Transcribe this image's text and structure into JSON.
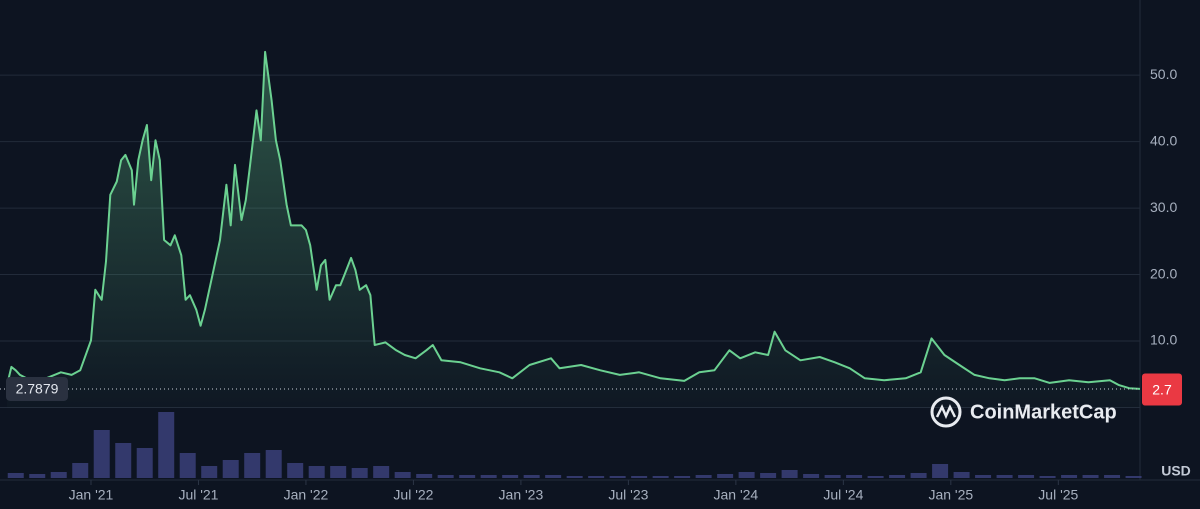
{
  "chart_data": {
    "type": "line",
    "x": [
      2020.61,
      2020.63,
      2020.65,
      2020.67,
      2020.7,
      2020.77,
      2020.86,
      2020.91,
      2020.95,
      2021.0,
      2021.02,
      2021.05,
      2021.07,
      2021.09,
      2021.12,
      2021.14,
      2021.16,
      2021.19,
      2021.2,
      2021.22,
      2021.24,
      2021.26,
      2021.28,
      2021.3,
      2021.32,
      2021.34,
      2021.37,
      2021.39,
      2021.42,
      2021.44,
      2021.46,
      2021.49,
      2021.51,
      2021.53,
      2021.56,
      2021.58,
      2021.6,
      2021.63,
      2021.65,
      2021.67,
      2021.7,
      2021.72,
      2021.74,
      2021.77,
      2021.79,
      2021.81,
      2021.84,
      2021.86,
      2021.88,
      2021.91,
      2021.93,
      2021.98,
      2022.0,
      2022.02,
      2022.05,
      2022.07,
      2022.09,
      2022.11,
      2022.14,
      2022.16,
      2022.18,
      2022.21,
      2022.23,
      2022.25,
      2022.28,
      2022.3,
      2022.32,
      2022.37,
      2022.42,
      2022.46,
      2022.51,
      2022.56,
      2022.59,
      2022.63,
      2022.72,
      2022.81,
      2022.9,
      2022.96,
      2023.04,
      2023.14,
      2023.18,
      2023.28,
      2023.37,
      2023.46,
      2023.55,
      2023.65,
      2023.76,
      2023.83,
      2023.9,
      2023.97,
      2024.02,
      2024.09,
      2024.15,
      2024.18,
      2024.23,
      2024.3,
      2024.39,
      2024.46,
      2024.53,
      2024.6,
      2024.69,
      2024.79,
      2024.86,
      2024.91,
      2024.97,
      2025.04,
      2025.11,
      2025.18,
      2025.25,
      2025.32,
      2025.39,
      2025.46,
      2025.55,
      2025.64,
      2025.74,
      2025.78,
      2025.83,
      2025.88
    ],
    "series": [
      {
        "color": "#6bd191",
        "values": [
          3.4,
          6.1,
          5.6,
          4.9,
          4.4,
          4.1,
          5.3,
          4.9,
          5.6,
          10.1,
          17.7,
          16.2,
          22.0,
          32.0,
          34.0,
          37.2,
          38.0,
          35.7,
          30.5,
          37.2,
          40.2,
          42.5,
          34.2,
          40.2,
          37.2,
          25.2,
          24.4,
          25.9,
          22.9,
          16.2,
          16.9,
          14.7,
          12.3,
          14.7,
          19.2,
          22.2,
          25.2,
          33.5,
          27.4,
          36.5,
          28.2,
          31.2,
          36.5,
          44.7,
          40.2,
          53.5,
          46.2,
          40.2,
          37.2,
          30.5,
          27.4,
          27.4,
          26.7,
          24.4,
          17.7,
          21.4,
          22.2,
          16.2,
          18.4,
          18.4,
          20.0,
          22.5,
          20.7,
          17.7,
          18.4,
          16.9,
          9.4,
          9.8,
          8.6,
          7.9,
          7.4,
          8.6,
          9.4,
          7.1,
          6.8,
          5.9,
          5.3,
          4.4,
          6.4,
          7.4,
          5.9,
          6.4,
          5.6,
          4.9,
          5.3,
          4.4,
          4.0,
          5.3,
          5.6,
          8.6,
          7.4,
          8.3,
          7.9,
          11.4,
          8.6,
          7.1,
          7.6,
          6.8,
          5.9,
          4.4,
          4.1,
          4.4,
          5.3,
          10.4,
          7.9,
          6.4,
          4.9,
          4.4,
          4.1,
          4.4,
          4.4,
          3.7,
          4.1,
          3.8,
          4.1,
          3.4,
          2.9,
          2.8
        ]
      }
    ],
    "volume": {
      "color": "#3b4079",
      "x": [
        2020.65,
        2020.75,
        2020.85,
        2020.95,
        2021.05,
        2021.15,
        2021.25,
        2021.35,
        2021.45,
        2021.55,
        2021.65,
        2021.75,
        2021.85,
        2021.95,
        2022.05,
        2022.15,
        2022.25,
        2022.35,
        2022.45,
        2022.55,
        2022.65,
        2022.75,
        2022.85,
        2022.95,
        2023.05,
        2023.15,
        2023.25,
        2023.35,
        2023.45,
        2023.55,
        2023.65,
        2023.75,
        2023.85,
        2023.95,
        2024.05,
        2024.15,
        2024.25,
        2024.35,
        2024.45,
        2024.55,
        2024.65,
        2024.75,
        2024.85,
        2024.95,
        2025.05,
        2025.15,
        2025.25,
        2025.35,
        2025.45,
        2025.55,
        2025.65,
        2025.75,
        2025.85
      ],
      "values": [
        5,
        4,
        6,
        15,
        48,
        35,
        30,
        66,
        25,
        12,
        18,
        25,
        28,
        15,
        12,
        12,
        10,
        12,
        6,
        4,
        3,
        3,
        3,
        3,
        3,
        3,
        2,
        2,
        2,
        2,
        2,
        2,
        3,
        4,
        6,
        5,
        8,
        4,
        3,
        3,
        2,
        3,
        5,
        14,
        6,
        3,
        3,
        3,
        2,
        3,
        3,
        3,
        2
      ]
    },
    "xlim": [
      2020.6,
      2025.88
    ],
    "xticks": [
      {
        "value": 2021.0,
        "label": "Jan '21"
      },
      {
        "value": 2021.5,
        "label": "Jul '21"
      },
      {
        "value": 2022.0,
        "label": "Jan '22"
      },
      {
        "value": 2022.5,
        "label": "Jul '22"
      },
      {
        "value": 2023.0,
        "label": "Jan '23"
      },
      {
        "value": 2023.5,
        "label": "Jul '23"
      },
      {
        "value": 2024.0,
        "label": "Jan '24"
      },
      {
        "value": 2024.5,
        "label": "Jul '24"
      },
      {
        "value": 2025.0,
        "label": "Jan '25"
      },
      {
        "value": 2025.5,
        "label": "Jul '25"
      }
    ],
    "ylim": [
      0,
      61.3
    ],
    "yticks": [
      {
        "value": 10,
        "label": "10.0"
      },
      {
        "value": 20,
        "label": "20.0"
      },
      {
        "value": 30,
        "label": "30.0"
      },
      {
        "value": 40,
        "label": "40.0"
      },
      {
        "value": 50,
        "label": "50.0"
      }
    ],
    "grid": true,
    "reference_price": 2.7879,
    "last_price": 2.7,
    "currency": "USD",
    "watermark": "CoinMarketCap"
  }
}
